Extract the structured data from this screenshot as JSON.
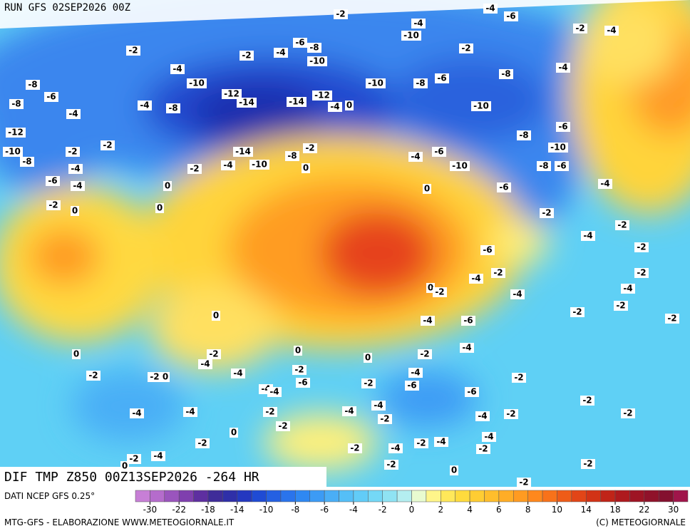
{
  "header": {
    "run": "RUN GFS 02SEP2026 00Z"
  },
  "map": {
    "title": "DIF TMP Z850 00Z13SEP2026 -264 HR",
    "contour_labels": [
      -2,
      -4,
      -6,
      -4,
      -10,
      -2,
      -4,
      -6,
      -8,
      -2,
      -2,
      -4,
      -10,
      -2,
      -4,
      -8,
      -4,
      -8,
      -10,
      -10,
      -8,
      -6,
      -12,
      -14,
      -12,
      -14,
      -6,
      -8,
      -4,
      -4,
      -8,
      -10,
      -4,
      0,
      -12,
      -8,
      -6,
      -10,
      -2,
      -2,
      -14,
      -2,
      -8,
      -10,
      -8,
      -4,
      -10,
      -4,
      -2,
      0,
      -4,
      -6,
      -10,
      -8,
      -6,
      -6,
      -4,
      0,
      0,
      -6,
      -4,
      -2,
      0,
      0,
      -2,
      -2,
      -4,
      -2,
      -6,
      -2,
      -4,
      -2,
      0,
      -2,
      -4,
      -4,
      -2,
      -2,
      -2,
      0,
      -4,
      -6,
      -4,
      -2,
      0,
      0,
      -2,
      -4,
      0,
      -2,
      -2,
      0,
      -4,
      -2,
      -6,
      -2,
      -4,
      -6,
      -2,
      -4,
      -4,
      -6,
      -2,
      -4,
      -4,
      -2,
      -4,
      -4,
      -4,
      -2,
      -2,
      -2,
      0,
      -2,
      -4,
      -2,
      -2,
      -4,
      -2,
      -4,
      -2,
      -2,
      -2,
      0,
      -2,
      -4,
      0,
      -2
    ]
  },
  "legend": {
    "source": "DATI NCEP GFS 0.25°",
    "colors": [
      "#c77fd6",
      "#b56ccc",
      "#9a55bd",
      "#7f3fae",
      "#5e2fa0",
      "#3f2c99",
      "#2f2fa8",
      "#2438c0",
      "#1f4bd4",
      "#2460e2",
      "#2a74ec",
      "#2f88f2",
      "#3c9bf5",
      "#4aaef6",
      "#55bff7",
      "#62ccf7",
      "#74d8f6",
      "#8fe3f3",
      "#b4eef0",
      "#e8fbd0",
      "#fff58a",
      "#ffe85a",
      "#ffdb3d",
      "#ffcd33",
      "#ffbe2c",
      "#ffad26",
      "#ff9b21",
      "#ff881d",
      "#f8721a",
      "#ee5c18",
      "#e24517",
      "#d23316",
      "#c02418",
      "#ae1a1e",
      "#9e1424",
      "#90122a",
      "#84102f",
      "#a0154a"
    ],
    "ticks": [
      -30,
      -22,
      -18,
      -14,
      -10,
      -8,
      -6,
      -4,
      -2,
      0,
      2,
      4,
      6,
      8,
      10,
      14,
      18,
      22,
      30
    ]
  },
  "footer": {
    "left": "MTG-GFS - ELABORAZIONE WWW.METEOGIORNALE.IT",
    "right": "(C) METEOGIORNALE"
  }
}
